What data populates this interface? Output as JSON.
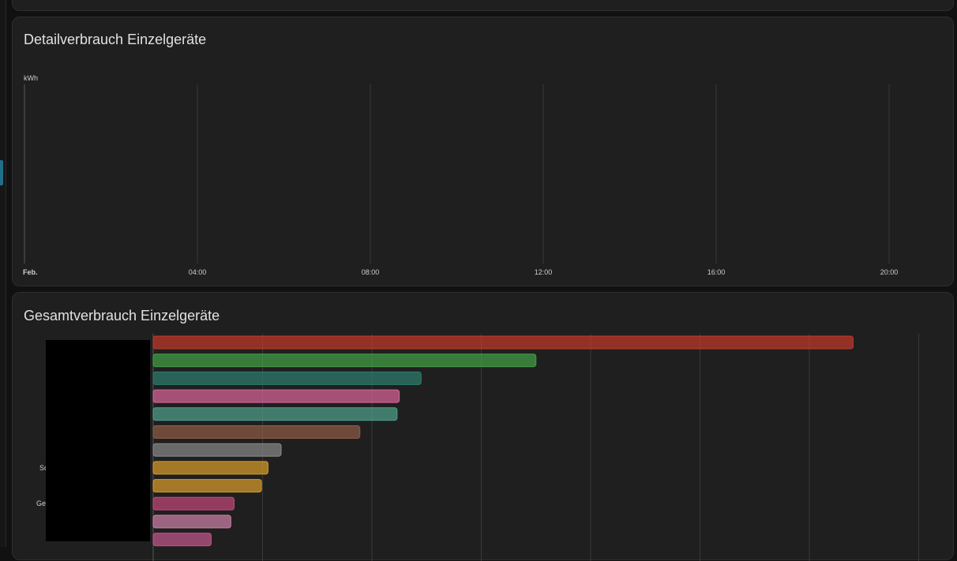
{
  "colors": {
    "page_bg": "#111111",
    "card_bg": "#1f1f1f",
    "card_border": "#2e2e2e",
    "gridline": "#3a3a3a",
    "text": "#e1e1e1",
    "rail_accent": "#1f6f8b"
  },
  "detail_card": {
    "title": "Detailverbrauch Einzelgeräte",
    "unit": "kWh",
    "x_ticks": [
      "Feb.",
      "04:00",
      "08:00",
      "12:00",
      "16:00",
      "20:00"
    ]
  },
  "total_card": {
    "title": "Gesamtverbrauch Einzelgeräte",
    "partial_labels": [
      "So",
      "Ge"
    ]
  },
  "chart_data": [
    {
      "type": "line",
      "title": "Detailverbrauch Einzelgeräte",
      "ylabel": "kWh",
      "x": [
        "Feb.",
        "04:00",
        "08:00",
        "12:00",
        "16:00",
        "20:00"
      ],
      "series": [],
      "grid": true
    },
    {
      "type": "bar",
      "orientation": "horizontal",
      "title": "Gesamtverbrauch Einzelgeräte",
      "categories": [
        "",
        "",
        "",
        "",
        "",
        "",
        "",
        "",
        "",
        "",
        "",
        ""
      ],
      "values": [
        6.4,
        3.5,
        2.45,
        2.25,
        2.23,
        1.89,
        1.17,
        1.05,
        0.99,
        0.74,
        0.71,
        0.53
      ],
      "colors": [
        "#c0392b",
        "#43a047",
        "#2e7d6e",
        "#d9659a",
        "#4fa08b",
        "#8d5b45",
        "#888888",
        "#d79b29",
        "#d79b29",
        "#c2487a",
        "#cc7fa6",
        "#c2578c"
      ],
      "xlim": [
        0,
        7.3
      ],
      "grid": true
    }
  ]
}
